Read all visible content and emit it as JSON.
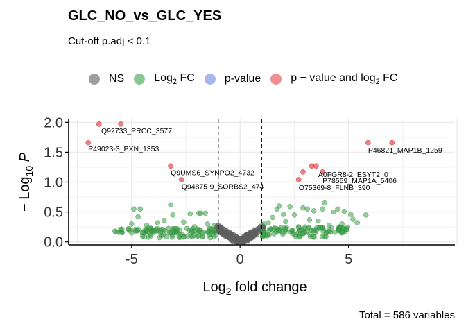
{
  "title": "GLC_NO_vs_GLC_YES",
  "subtitle": "Cut-off p.adj < 0.1",
  "caption": "Total = 586 variables",
  "legend": [
    {
      "label": "NS",
      "sub": "",
      "after": "",
      "color": "#5e5e5e",
      "name": "legend-ns"
    },
    {
      "label": "Log",
      "sub": "2",
      "after": " FC",
      "color": "#3ca24a",
      "name": "legend-log2fc"
    },
    {
      "label": "p-value",
      "sub": "",
      "after": "",
      "color": "#6f86e0",
      "name": "legend-pvalue"
    },
    {
      "label": "p − value and log",
      "sub": "2",
      "after": " FC",
      "color": "#e6484a",
      "name": "legend-both"
    }
  ],
  "chart_data": {
    "type": "scatter",
    "xlabel": {
      "text": "Log",
      "sub": "2",
      "after": " fold change"
    },
    "ylabel": {
      "prefix": "− Log",
      "sub": "10",
      "italic": "P"
    },
    "xlim": [
      -7.9,
      9.9
    ],
    "ylim": [
      -0.05,
      2.05
    ],
    "x_ticks": [
      -5,
      0,
      5
    ],
    "y_ticks": [
      0.0,
      0.5,
      1.0,
      1.5,
      2.0
    ],
    "y_tick_labels": [
      "0.0",
      "0.5",
      "1.0",
      "1.5",
      "2.0"
    ],
    "cutoffs": {
      "fc_neg": -1,
      "fc_pos": 1,
      "p_line": 1.0
    },
    "grid": true,
    "colors": {
      "NS": "#5e5e5e",
      "FC": "#3ca24a",
      "P": "#6f86e0",
      "BOTH": "#e6484a"
    },
    "significant_points": [
      {
        "x": -6.5,
        "y": 1.97
      },
      {
        "x": -5.5,
        "y": 1.97
      },
      {
        "x": -7.0,
        "y": 1.66
      },
      {
        "x": -3.2,
        "y": 1.27
      },
      {
        "x": -2.7,
        "y": 1.04
      },
      {
        "x": 2.7,
        "y": 1.04
      },
      {
        "x": 2.9,
        "y": 1.17
      },
      {
        "x": 3.3,
        "y": 1.27
      },
      {
        "x": 3.5,
        "y": 1.27
      },
      {
        "x": 3.8,
        "y": 1.17
      },
      {
        "x": 5.9,
        "y": 1.66
      },
      {
        "x": 7.0,
        "y": 1.66
      }
    ],
    "labels": [
      {
        "text": "Q92733_PRCC_3577",
        "x": -6.4,
        "y": 1.85
      },
      {
        "text": "P49023-3_PXN_1353",
        "x": -7.0,
        "y": 1.55
      },
      {
        "text": "Q9UMS6_SYNPO2_4732",
        "x": -3.2,
        "y": 1.15
      },
      {
        "text": "Q94875-9_SORBS2_474",
        "x": -2.7,
        "y": 0.92
      },
      {
        "text": "A0FGR8-2_ESYT2_0",
        "x": 3.6,
        "y": 1.12
      },
      {
        "text": "P78559_MAP1A_5406",
        "x": 3.8,
        "y": 1.02
      },
      {
        "text": "O75369-8_FLNB_390",
        "x": 2.7,
        "y": 0.9
      },
      {
        "text": "P46821_MAP1B_1259",
        "x": 5.9,
        "y": 1.53
      }
    ],
    "fc_points": [
      {
        "x": -4.9,
        "y": 0.55
      },
      {
        "x": -4.6,
        "y": 0.55
      },
      {
        "x": -4.7,
        "y": 0.42
      },
      {
        "x": -5.0,
        "y": 0.3
      },
      {
        "x": -5.5,
        "y": 0.21
      },
      {
        "x": -4.5,
        "y": 0.16
      },
      {
        "x": -4.3,
        "y": 0.28
      },
      {
        "x": -3.8,
        "y": 0.32
      },
      {
        "x": -3.5,
        "y": 0.36
      },
      {
        "x": -3.2,
        "y": 0.62
      },
      {
        "x": -3.1,
        "y": 0.45
      },
      {
        "x": -2.9,
        "y": 0.22
      },
      {
        "x": -2.6,
        "y": 0.33
      },
      {
        "x": -2.3,
        "y": 0.47
      },
      {
        "x": -2.1,
        "y": 0.25
      },
      {
        "x": -1.9,
        "y": 0.48
      },
      {
        "x": -1.8,
        "y": 0.48
      },
      {
        "x": -1.6,
        "y": 0.48
      },
      {
        "x": -1.5,
        "y": 0.3
      },
      {
        "x": -1.3,
        "y": 0.21
      },
      {
        "x": -1.2,
        "y": 0.27
      },
      {
        "x": 1.1,
        "y": 0.3
      },
      {
        "x": 1.3,
        "y": 0.32
      },
      {
        "x": 1.5,
        "y": 0.41
      },
      {
        "x": 1.7,
        "y": 0.55
      },
      {
        "x": 1.8,
        "y": 0.6
      },
      {
        "x": 2.0,
        "y": 0.46
      },
      {
        "x": 2.1,
        "y": 0.34
      },
      {
        "x": 2.3,
        "y": 0.59
      },
      {
        "x": 2.5,
        "y": 0.45
      },
      {
        "x": 2.7,
        "y": 0.25
      },
      {
        "x": 2.9,
        "y": 0.57
      },
      {
        "x": 3.1,
        "y": 0.55
      },
      {
        "x": 3.2,
        "y": 0.37
      },
      {
        "x": 3.4,
        "y": 0.52
      },
      {
        "x": 3.6,
        "y": 0.35
      },
      {
        "x": 3.8,
        "y": 0.55
      },
      {
        "x": 3.9,
        "y": 0.65
      },
      {
        "x": 4.1,
        "y": 0.28
      },
      {
        "x": 4.3,
        "y": 0.5
      },
      {
        "x": 4.5,
        "y": 0.55
      },
      {
        "x": 4.7,
        "y": 0.3
      },
      {
        "x": 4.8,
        "y": 0.51
      },
      {
        "x": 5.1,
        "y": 0.46
      },
      {
        "x": 5.2,
        "y": 0.38
      },
      {
        "x": 5.4,
        "y": 0.32
      },
      {
        "x": 5.8,
        "y": 0.45
      },
      {
        "x": -5.6,
        "y": 0.16
      },
      {
        "x": -4.1,
        "y": 0.22
      },
      {
        "x": 4.9,
        "y": 0.2
      }
    ],
    "bands": [
      {
        "from": -5.8,
        "to": -1.0,
        "y": 0.19,
        "spread": 0.04,
        "count": 75
      },
      {
        "from": 1.0,
        "to": 5.0,
        "y": 0.2,
        "spread": 0.05,
        "count": 70
      },
      {
        "from": -4.5,
        "to": -1.0,
        "y": 0.1,
        "spread": 0.03,
        "count": 30
      },
      {
        "from": 1.0,
        "to": 4.3,
        "y": 0.12,
        "spread": 0.04,
        "count": 30
      }
    ],
    "ns_count": 190
  }
}
